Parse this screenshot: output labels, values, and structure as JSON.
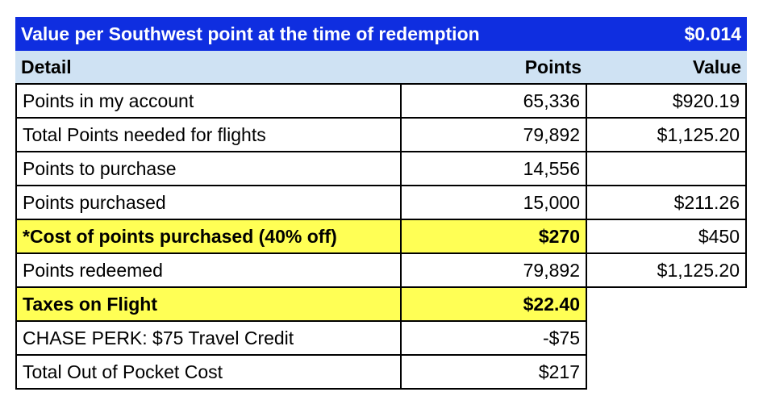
{
  "title": {
    "label": "Value per Southwest point at the time of redemption",
    "value": "$0.014"
  },
  "columns": {
    "detail": "Detail",
    "points": "Points",
    "value": "Value"
  },
  "rows": [
    {
      "detail": "Points in my account",
      "points": "65,336",
      "value": "$920.19"
    },
    {
      "detail": "Total Points needed for flights",
      "points": "79,892",
      "value": "$1,125.20"
    },
    {
      "detail": "Points to purchase",
      "points": "14,556",
      "value": ""
    },
    {
      "detail": "Points purchased",
      "points": "15,000",
      "value": "$211.26"
    },
    {
      "detail": "*Cost of points purchased (40% off)",
      "points": "$270",
      "value": "$450"
    },
    {
      "detail": "Points redeemed",
      "points": "79,892",
      "value": "$1,125.20"
    },
    {
      "detail": "Taxes on Flight",
      "points": "$22.40"
    },
    {
      "detail": "CHASE PERK: $75 Travel Credit",
      "points": "-$75"
    },
    {
      "detail": "Total Out of Pocket Cost",
      "points": "$217"
    }
  ],
  "colors": {
    "title_bg": "#0f2ee0",
    "header_bg": "#cfe2f3",
    "highlight": "#ffff55"
  }
}
